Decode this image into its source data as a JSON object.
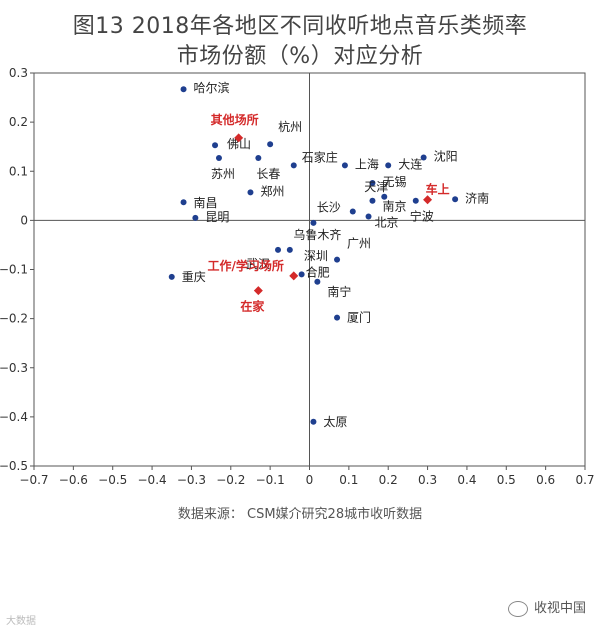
{
  "chart_data": {
    "type": "scatter",
    "title_line1": "图13  2018年各地区不同收听地点音乐类频率",
    "title_line2": "市场份额（%）对应分析",
    "xlim": [
      -0.7,
      0.7
    ],
    "ylim": [
      -0.5,
      0.3
    ],
    "x_ticks": [
      "−0.7",
      "−0.6",
      "−0.5",
      "−0.4",
      "−0.3",
      "−0.2",
      "−0.1",
      "0",
      "0.1",
      "0.2",
      "0.3",
      "0.4",
      "0.5",
      "0.6",
      "0.7"
    ],
    "y_ticks": [
      "0.3",
      "0.2",
      "0.1",
      "0",
      "−0.1",
      "−0.2",
      "−0.3",
      "−0.4",
      "−0.5"
    ],
    "series": [
      {
        "name": "cities",
        "color": "#1f3f8f",
        "points": [
          {
            "label": "哈尔滨",
            "x": -0.32,
            "y": 0.267
          },
          {
            "label": "杭州",
            "x": -0.1,
            "y": 0.155
          },
          {
            "label": "佛山",
            "x": -0.24,
            "y": 0.153
          },
          {
            "label": "石家庄",
            "x": -0.04,
            "y": 0.112
          },
          {
            "label": "上海",
            "x": 0.09,
            "y": 0.112
          },
          {
            "label": "大连",
            "x": 0.2,
            "y": 0.112
          },
          {
            "label": "沈阳",
            "x": 0.29,
            "y": 0.128
          },
          {
            "label": "苏州",
            "x": -0.23,
            "y": 0.127
          },
          {
            "label": "长春",
            "x": -0.13,
            "y": 0.127
          },
          {
            "label": "无锡",
            "x": 0.16,
            "y": 0.076
          },
          {
            "label": "郑州",
            "x": -0.15,
            "y": 0.057
          },
          {
            "label": "天津",
            "x": 0.19,
            "y": 0.048
          },
          {
            "label": "南京",
            "x": 0.16,
            "y": 0.04
          },
          {
            "label": "济南",
            "x": 0.37,
            "y": 0.043
          },
          {
            "label": "南昌",
            "x": -0.32,
            "y": 0.037
          },
          {
            "label": "长沙",
            "x": 0.11,
            "y": 0.018
          },
          {
            "label": "宁波",
            "x": 0.27,
            "y": 0.04
          },
          {
            "label": "昆明",
            "x": -0.29,
            "y": 0.005
          },
          {
            "label": "北京",
            "x": 0.15,
            "y": 0.008
          },
          {
            "label": "乌鲁木齐",
            "x": 0.01,
            "y": -0.005
          },
          {
            "label": "武汉",
            "x": -0.08,
            "y": -0.06
          },
          {
            "label": "深圳",
            "x": -0.05,
            "y": -0.06
          },
          {
            "label": "广州",
            "x": 0.07,
            "y": -0.08
          },
          {
            "label": "重庆",
            "x": -0.35,
            "y": -0.115
          },
          {
            "label": "合肥",
            "x": -0.02,
            "y": -0.11
          },
          {
            "label": "南宁",
            "x": 0.02,
            "y": -0.125
          },
          {
            "label": "厦门",
            "x": 0.07,
            "y": -0.198
          },
          {
            "label": "太原",
            "x": 0.01,
            "y": -0.41
          }
        ]
      },
      {
        "name": "listening locations",
        "color": "#d42a2a",
        "points": [
          {
            "label": "其他场所",
            "x": -0.18,
            "y": 0.168
          },
          {
            "label": "车上",
            "x": 0.3,
            "y": 0.042
          },
          {
            "label": "工作/学习场所",
            "x": -0.04,
            "y": -0.113
          },
          {
            "label": "在家",
            "x": -0.13,
            "y": -0.143
          }
        ]
      }
    ]
  },
  "source": "数据来源：  CSM媒介研究28城市收听数据",
  "watermark_left": "大数据",
  "watermark_right": "收视中国"
}
